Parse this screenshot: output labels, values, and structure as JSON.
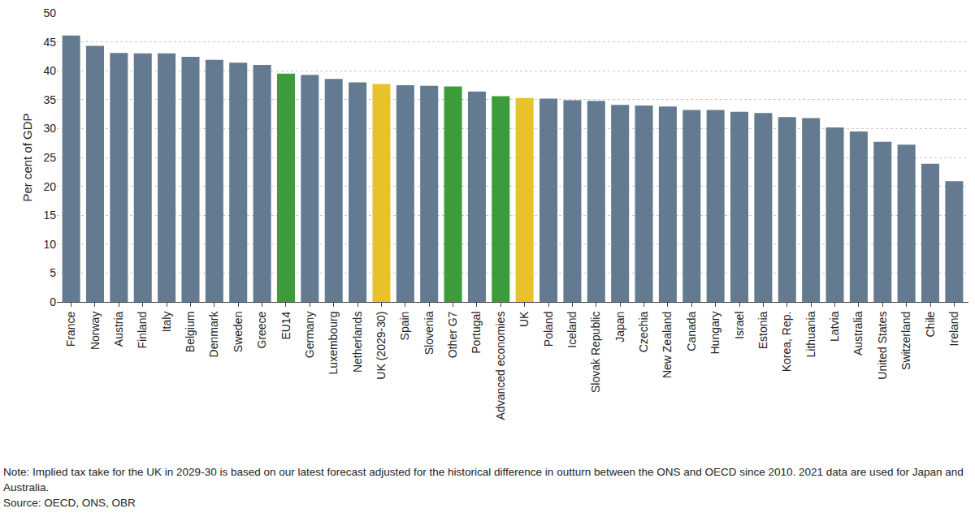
{
  "chart_data": {
    "type": "bar",
    "y_label": "Per cent of GDP",
    "categories": [
      "France",
      "Norway",
      "Austria",
      "Finland",
      "Italy",
      "Belgium",
      "Denmark",
      "Sweden",
      "Greece",
      "EU14",
      "Germany",
      "Luxembourg",
      "Netherlands",
      "UK (2029-30)",
      "Spain",
      "Slovenia",
      "Other G7",
      "Portugal",
      "Advanced economies",
      "UK",
      "Poland",
      "Iceland",
      "Slovak Republic",
      "Japan",
      "Czechia",
      "New Zealand",
      "Canada",
      "Hungary",
      "Israel",
      "Estonia",
      "Korea, Rep.",
      "Lithuania",
      "Latvia",
      "Australia",
      "United States",
      "Switzerland",
      "Chile",
      "Ireland"
    ],
    "values": [
      46.1,
      44.3,
      43.1,
      43.0,
      43.0,
      42.4,
      41.9,
      41.4,
      41.0,
      39.5,
      39.3,
      38.6,
      38.0,
      37.7,
      37.5,
      37.4,
      37.3,
      36.4,
      35.6,
      35.3,
      35.2,
      34.9,
      34.8,
      34.1,
      34.0,
      33.8,
      33.2,
      33.2,
      32.9,
      32.7,
      32.0,
      31.8,
      30.2,
      29.5,
      27.7,
      27.2,
      23.9,
      20.9
    ],
    "colors": [
      "#647a91",
      "#647a91",
      "#647a91",
      "#647a91",
      "#647a91",
      "#647a91",
      "#647a91",
      "#647a91",
      "#647a91",
      "#3c9b3b",
      "#647a91",
      "#647a91",
      "#647a91",
      "#e8c22a",
      "#647a91",
      "#647a91",
      "#3c9b3b",
      "#647a91",
      "#3c9b3b",
      "#e8c22a",
      "#647a91",
      "#647a91",
      "#647a91",
      "#647a91",
      "#647a91",
      "#647a91",
      "#647a91",
      "#647a91",
      "#647a91",
      "#647a91",
      "#647a91",
      "#647a91",
      "#647a91",
      "#647a91",
      "#647a91",
      "#647a91",
      "#647a91",
      "#647a91"
    ],
    "ylim": [
      0,
      50
    ],
    "yticks": [
      0,
      5,
      10,
      15,
      20,
      25,
      30,
      35,
      40,
      45,
      50
    ],
    "grid": true,
    "annotations": [
      "Note: Implied tax take for the UK in 2029-30 is based on our latest forecast adjusted for the historical difference in outturn between the ONS and OECD since 2010. 2021 data are used for Japan and Australia.",
      "Source: OECD, ONS, OBR"
    ]
  }
}
